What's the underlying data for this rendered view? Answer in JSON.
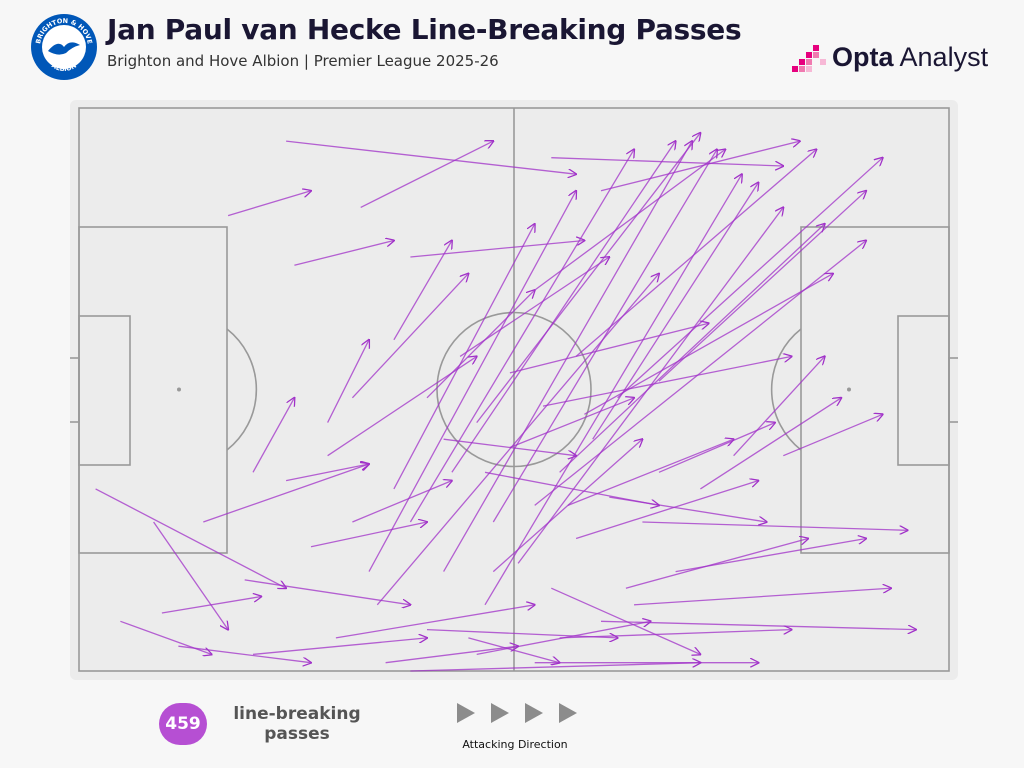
{
  "header": {
    "title": "Jan Paul van Hecke Line-Breaking Passes",
    "subtitle": "Brighton and Hove Albion | Premier League 2025-26",
    "crest_top_text": "BRIGHTON & HOVE",
    "crest_bottom_text": "ALBION",
    "brand_bold": "Opta",
    "brand_regular": " Analyst"
  },
  "colors": {
    "pass": "#a030c8",
    "badge": "#b64fd3",
    "pitch_line": "#999999",
    "title": "#1a1633",
    "crest_blue": "#0057b8",
    "brand_pink": "#e6007e"
  },
  "footer": {
    "count": "459",
    "count_label": "line-breaking passes",
    "direction_label": "Attacking Direction"
  },
  "chart_data": {
    "type": "pass-map",
    "pitch": {
      "length": 105,
      "width": 68,
      "attacking_direction": "left-to-right"
    },
    "total_passes": 459,
    "sample_passes": [
      [
        34,
        12,
        50,
        4
      ],
      [
        25,
        4,
        60,
        8
      ],
      [
        18,
        13,
        28,
        10
      ],
      [
        40,
        18,
        61,
        16
      ],
      [
        26,
        19,
        38,
        16
      ],
      [
        57,
        6,
        85,
        7
      ],
      [
        63,
        10,
        87,
        4
      ],
      [
        55,
        22,
        78,
        5
      ],
      [
        45,
        44,
        72,
        4
      ],
      [
        48,
        38,
        75,
        3
      ],
      [
        60,
        30,
        89,
        5
      ],
      [
        65,
        35,
        97,
        6
      ],
      [
        70,
        33,
        95,
        10
      ],
      [
        58,
        44,
        90,
        14
      ],
      [
        62,
        40,
        82,
        9
      ],
      [
        50,
        50,
        77,
        5
      ],
      [
        44,
        56,
        74,
        4
      ],
      [
        53,
        55,
        85,
        12
      ],
      [
        55,
        48,
        95,
        16
      ],
      [
        49,
        60,
        80,
        8
      ],
      [
        40,
        50,
        67,
        5
      ],
      [
        35,
        56,
        60,
        10
      ],
      [
        38,
        46,
        55,
        14
      ],
      [
        30,
        42,
        48,
        30
      ],
      [
        36,
        60,
        70,
        20
      ],
      [
        2,
        46,
        25,
        58
      ],
      [
        9,
        50,
        18,
        63
      ],
      [
        20,
        57,
        40,
        60
      ],
      [
        10,
        61,
        22,
        59
      ],
      [
        15,
        50,
        35,
        43
      ],
      [
        31,
        64,
        55,
        60
      ],
      [
        42,
        63,
        65,
        64
      ],
      [
        48,
        66,
        69,
        62
      ],
      [
        58,
        64,
        86,
        63
      ],
      [
        63,
        62,
        101,
        63
      ],
      [
        67,
        60,
        98,
        58
      ],
      [
        72,
        56,
        95,
        52
      ],
      [
        68,
        50,
        100,
        51
      ],
      [
        75,
        46,
        92,
        35
      ],
      [
        79,
        42,
        90,
        30
      ],
      [
        85,
        42,
        97,
        37
      ],
      [
        70,
        44,
        84,
        38
      ],
      [
        60,
        52,
        82,
        45
      ],
      [
        66,
        58,
        88,
        52
      ],
      [
        50,
        56,
        68,
        40
      ],
      [
        28,
        53,
        42,
        50
      ],
      [
        33,
        50,
        45,
        45
      ],
      [
        21,
        44,
        26,
        35
      ],
      [
        30,
        38,
        35,
        28
      ],
      [
        25,
        45,
        35,
        43
      ],
      [
        38,
        28,
        45,
        16
      ],
      [
        33,
        35,
        47,
        20
      ],
      [
        42,
        35,
        55,
        22
      ],
      [
        46,
        30,
        64,
        18
      ],
      [
        52,
        32,
        76,
        26
      ],
      [
        56,
        36,
        86,
        30
      ],
      [
        61,
        37,
        91,
        20
      ],
      [
        57,
        58,
        75,
        66
      ],
      [
        47,
        64,
        58,
        67
      ],
      [
        37,
        67,
        53,
        65
      ],
      [
        21,
        66,
        42,
        64
      ],
      [
        12,
        65,
        28,
        67
      ],
      [
        5,
        62,
        16,
        66
      ],
      [
        40,
        68,
        75,
        67
      ],
      [
        55,
        67,
        82,
        67
      ],
      [
        64,
        47,
        83,
        50
      ],
      [
        49,
        44,
        70,
        48
      ],
      [
        44,
        40,
        60,
        42
      ],
      [
        52,
        41,
        67,
        35
      ],
      [
        59,
        48,
        79,
        40
      ]
    ]
  }
}
